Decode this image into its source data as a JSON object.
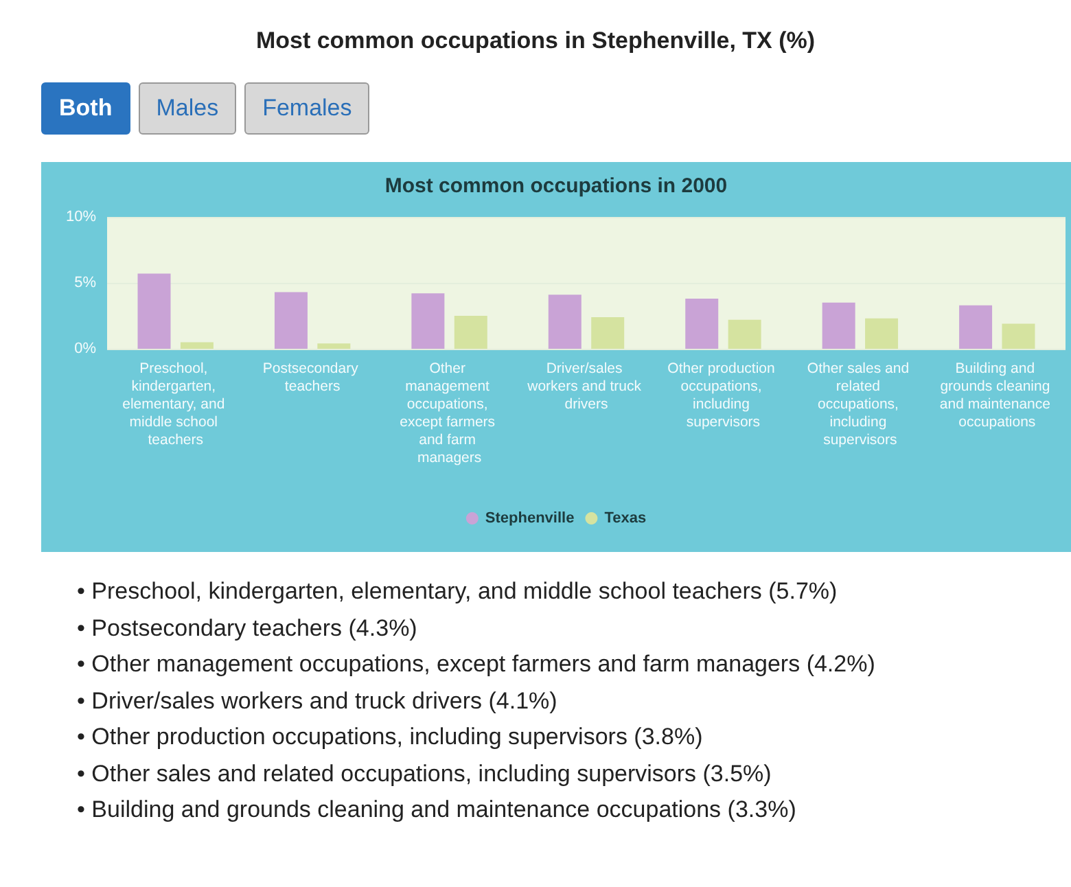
{
  "chart_data": {
    "type": "bar",
    "title": "Most common occupations in Stephenville, TX (%)",
    "subtitle": "Most common occupations in 2000",
    "categories": [
      "Preschool, kindergarten, elementary, and middle school teachers",
      "Postsecondary teachers",
      "Other management occupations, except farmers and farm managers",
      "Driver/sales workers and truck drivers",
      "Other production occupations, including supervisors",
      "Other sales and related occupations, including supervisors",
      "Building and grounds cleaning and maintenance occupations"
    ],
    "series": [
      {
        "name": "Stephenville",
        "color": "#c9a3d6",
        "values": [
          5.7,
          4.3,
          4.2,
          4.1,
          3.8,
          3.5,
          3.3
        ]
      },
      {
        "name": "Texas",
        "color": "#d5e3a0",
        "values": [
          0.5,
          0.4,
          2.5,
          2.4,
          2.2,
          2.3,
          1.9
        ]
      }
    ],
    "ylim": [
      0,
      10
    ],
    "yticks": [
      {
        "value": 0,
        "label": "0%"
      },
      {
        "value": 5,
        "label": "5%"
      },
      {
        "value": 10,
        "label": "10%"
      }
    ],
    "grid": "y",
    "legend": "bottom",
    "annotations": [
      "Both",
      "Males",
      "Females",
      "• Preschool, kindergarten, elementary, and middle school teachers (5.7%)",
      "• Postsecondary teachers (4.3%)",
      "• Other management occupations, except farmers and farm managers (4.2%)",
      "• Driver/sales workers and truck drivers (4.1%)",
      "• Other production occupations, including supervisors (3.8%)",
      "• Other sales and related occupations, including supervisors (3.5%)",
      "• Building and grounds cleaning and maintenance occupations (3.3%)"
    ]
  }
}
